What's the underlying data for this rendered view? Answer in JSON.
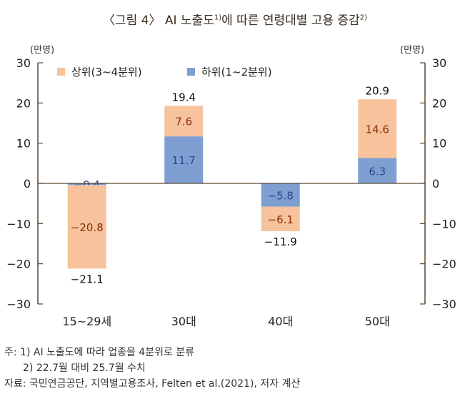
{
  "title": {
    "text": "〈그림 4〉 AI 노출도",
    "sup1": "1)",
    "text2": "에 따른 연령대별 고용 증감",
    "sup2": "2)"
  },
  "chart_data": {
    "type": "bar",
    "stacked": true,
    "categories": [
      "15~29세",
      "30대",
      "40대",
      "50대"
    ],
    "series": [
      {
        "name": "하위(1~2분위)",
        "values": [
          -0.4,
          11.7,
          -5.8,
          6.3
        ],
        "color": "#7f9fd2",
        "label_color": "#2b4a85"
      },
      {
        "name": "상위(3~4분위)",
        "values": [
          -20.8,
          7.6,
          -6.1,
          14.6
        ],
        "color": "#f6c39c",
        "label_color": "#8a2c0c"
      }
    ],
    "totals": [
      -21.1,
      19.4,
      -11.9,
      20.9
    ],
    "ylabel_left": "(만명)",
    "ylabel_right": "(만명)",
    "ylim": [
      -30,
      30
    ],
    "yticks": [
      -30,
      -20,
      -10,
      0,
      10,
      20,
      30
    ],
    "legend_placement": "top-left",
    "legend_order": [
      "상위(3~4분위)",
      "하위(1~2분위)"
    ],
    "axis_color": "#5b4632"
  },
  "notes": {
    "note1": "주: 1) AI 노출도에 따라 업종을 4분위로 분류",
    "note2": "2) 22.7월 대비 25.7월 수치",
    "source": "자료: 국민연금공단, 지역별고용조사, Felten et al.(2021), 저자 계산"
  }
}
